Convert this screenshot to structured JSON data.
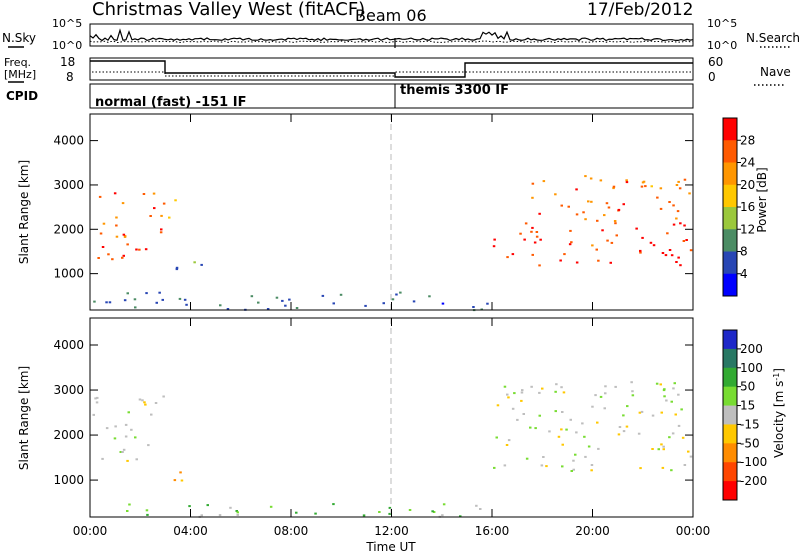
{
  "header": {
    "title": "Christmas Valley West (fitACF)",
    "beam": "Beam 06",
    "date": "17/Feb/2012"
  },
  "top_panels": {
    "noise_label": "N.Sky",
    "noise_left_ticks": [
      "10^5",
      "10^0"
    ],
    "noise_right_ticks": [
      "10^5",
      "10^0"
    ],
    "search_label": "N.Search",
    "freq_label": "Freq.",
    "freq_unit": "[MHz]",
    "freq_ticks": [
      "18",
      "8"
    ],
    "nave_label": "Nave",
    "nave_ticks": [
      "60",
      "0"
    ],
    "cpid_label": "CPID",
    "cpid_segments": [
      "normal (fast) -151 IF",
      "themis 3300 IF"
    ]
  },
  "power_colorbar": {
    "label": "Power [dB]",
    "ticks": [
      "28",
      "24",
      "20",
      "16",
      "12",
      "8",
      "4"
    ],
    "colors": [
      "#ff0000",
      "#ff5a00",
      "#ff9600",
      "#ffc800",
      "#9bc83c",
      "#4b8c64",
      "#2846b4",
      "#0000ff"
    ]
  },
  "velocity_colorbar": {
    "label": "Velocity [m s^-1]",
    "ticks": [
      "200",
      "100",
      "50",
      "15",
      "-15",
      "-50",
      "-100",
      "-200"
    ],
    "colors": [
      "#1e28c8",
      "#287864",
      "#32aa32",
      "#78dc32",
      "#bebebe",
      "#ffc800",
      "#ff8c00",
      "#ff4600",
      "#ff0000"
    ]
  },
  "axes": {
    "ylabel": "Slant Range [km]",
    "xlabel": "Time UT",
    "xticks": [
      "00:00",
      "04:00",
      "08:00",
      "12:00",
      "16:00",
      "20:00",
      "00:00"
    ],
    "yticks": [
      "1000",
      "2000",
      "3000",
      "4000"
    ]
  },
  "chart_data": [
    {
      "type": "heatmap",
      "title": "Power",
      "xlabel": "Time UT",
      "ylabel": "Slant Range [km]",
      "xlim": [
        0,
        24
      ],
      "ylim": [
        180,
        4600
      ],
      "colorbar": "Power [dB]",
      "clim": [
        0,
        30
      ],
      "regions": [
        {
          "t0": 0.1,
          "t1": 2.9,
          "r0": 1300,
          "r1": 2900,
          "level": 26
        },
        {
          "t0": 2.9,
          "t1": 3.6,
          "r0": 2100,
          "r1": 2800,
          "level": 20
        },
        {
          "t0": 3.3,
          "t1": 4.5,
          "r0": 900,
          "r1": 1400,
          "level": 8
        },
        {
          "t0": 16.0,
          "t1": 24.0,
          "r0": 1200,
          "r1": 2200,
          "level": 28
        },
        {
          "t0": 17.5,
          "t1": 24.0,
          "r0": 2200,
          "r1": 3300,
          "level": 24
        },
        {
          "t0": 0.0,
          "t1": 16.0,
          "r0": 200,
          "r1": 600,
          "level": 6
        }
      ]
    },
    {
      "type": "heatmap",
      "title": "Velocity",
      "xlabel": "Time UT",
      "ylabel": "Slant Range [km]",
      "xlim": [
        0,
        24
      ],
      "ylim": [
        180,
        4600
      ],
      "colorbar": "Velocity [m s^-1]",
      "clim": [
        -200,
        200
      ],
      "regions": [
        {
          "t0": 0.1,
          "t1": 2.9,
          "r0": 1400,
          "r1": 2900,
          "level": 0
        },
        {
          "t0": 3.3,
          "t1": 4.2,
          "r0": 900,
          "r1": 1500,
          "level": -40
        },
        {
          "t0": 16.0,
          "t1": 24.0,
          "r0": 1200,
          "r1": 3200,
          "level": 0
        },
        {
          "t0": 0.0,
          "t1": 16.0,
          "r0": 200,
          "r1": 500,
          "level": 30
        }
      ]
    }
  ]
}
